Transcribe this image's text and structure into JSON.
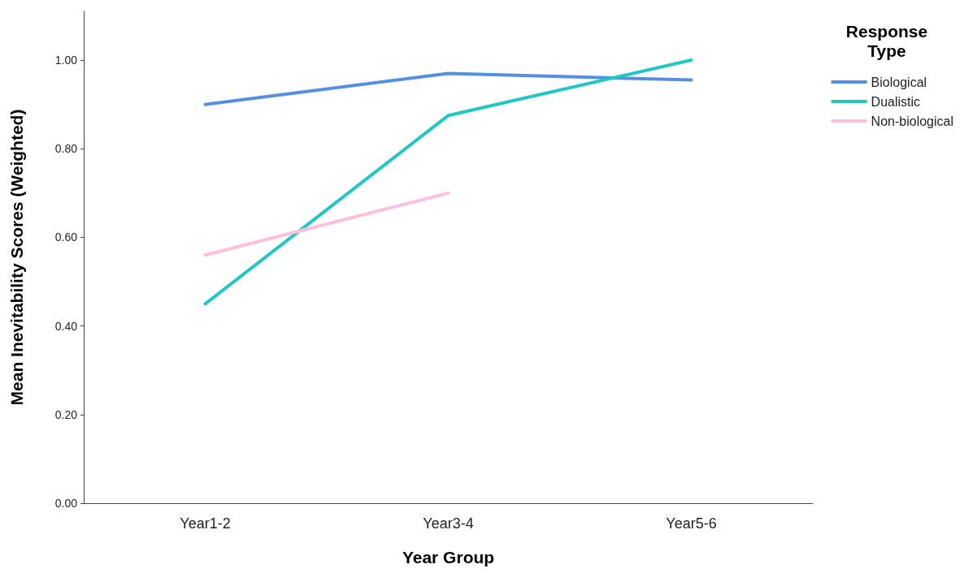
{
  "chart_data": {
    "type": "line",
    "xlabel": "Year Group",
    "ylabel": "Mean Inevitability Scores (Weighted)",
    "legend_title": "Response Type",
    "categories": [
      "Year1-2",
      "Year3-4",
      "Year5-6"
    ],
    "series": [
      {
        "name": "Biological",
        "color": "#5590e0",
        "values": [
          0.9,
          0.97,
          0.955
        ]
      },
      {
        "name": "Dualistic",
        "color": "#1fc8c3",
        "values": [
          0.45,
          0.875,
          1.0
        ]
      },
      {
        "name": "Non-biological",
        "color": "#fcc0dc",
        "values": [
          0.56,
          0.7,
          null
        ]
      }
    ],
    "ylim": [
      0,
      1.11
    ],
    "yticks": [
      {
        "value": 0,
        "label": "0.00"
      },
      {
        "value": 0.2,
        "label": "0.20"
      },
      {
        "value": 0.4,
        "label": "0.40"
      },
      {
        "value": 0.6,
        "label": "0.60"
      },
      {
        "value": 0.8,
        "label": "0.80"
      },
      {
        "value": 1,
        "label": "1.00"
      }
    ],
    "grid": false,
    "legend": "top right",
    "marker": "none",
    "line_style": "solid"
  }
}
